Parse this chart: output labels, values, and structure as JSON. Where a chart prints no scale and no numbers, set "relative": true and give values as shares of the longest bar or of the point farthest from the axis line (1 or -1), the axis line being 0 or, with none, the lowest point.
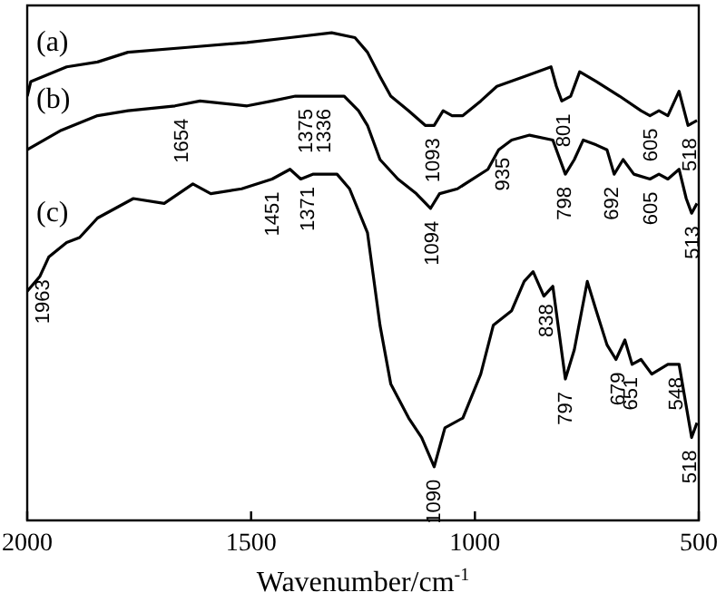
{
  "chart_data": {
    "type": "line",
    "relative": true,
    "xlabel": "Wavenumber/cm$^{-1}$",
    "xlim": [
      2000,
      500
    ],
    "xticks": [
      2000,
      1500,
      1000,
      500
    ],
    "grid": false,
    "legend": false,
    "marker": "none",
    "line_style": "solid",
    "tick_labels": "x",
    "series": [
      {
        "name": "(a)",
        "color": "#000000",
        "x": [
          2000,
          1992,
          1912,
          1843,
          1775,
          1642,
          1509,
          1413,
          1320,
          1268,
          1240,
          1212,
          1188,
          1148,
          1111,
          1091,
          1071,
          1051,
          1027,
          987,
          951,
          890,
          830,
          818,
          806,
          786,
          766,
          729,
          677,
          629,
          609,
          589,
          569,
          544,
          524,
          504
        ],
        "values": [
          0.87,
          0.9,
          0.93,
          0.94,
          0.96,
          0.97,
          0.98,
          0.99,
          1.0,
          0.99,
          0.96,
          0.91,
          0.87,
          0.84,
          0.81,
          0.81,
          0.84,
          0.83,
          0.83,
          0.86,
          0.89,
          0.91,
          0.93,
          0.89,
          0.86,
          0.87,
          0.92,
          0.9,
          0.87,
          0.84,
          0.83,
          0.84,
          0.83,
          0.88,
          0.81,
          0.82
        ]
      },
      {
        "name": "(b)",
        "color": "#000000",
        "x": [
          2000,
          1924,
          1843,
          1775,
          1670,
          1614,
          1509,
          1453,
          1401,
          1361,
          1292,
          1260,
          1240,
          1212,
          1172,
          1131,
          1099,
          1079,
          1039,
          971,
          947,
          918,
          878,
          826,
          798,
          778,
          758,
          729,
          705,
          689,
          669,
          645,
          609,
          589,
          569,
          544,
          528,
          516,
          504
        ],
        "values": [
          0.76,
          0.8,
          0.83,
          0.84,
          0.85,
          0.86,
          0.85,
          0.86,
          0.87,
          0.87,
          0.87,
          0.84,
          0.81,
          0.74,
          0.7,
          0.67,
          0.64,
          0.67,
          0.68,
          0.72,
          0.76,
          0.78,
          0.79,
          0.78,
          0.71,
          0.74,
          0.78,
          0.77,
          0.76,
          0.71,
          0.74,
          0.71,
          0.7,
          0.71,
          0.7,
          0.72,
          0.66,
          0.63,
          0.65
        ]
      },
      {
        "name": "(c)",
        "color": "#000000",
        "x": [
          2000,
          1972,
          1952,
          1912,
          1883,
          1843,
          1763,
          1694,
          1630,
          1590,
          1521,
          1453,
          1413,
          1389,
          1361,
          1308,
          1280,
          1240,
          1212,
          1188,
          1148,
          1119,
          1091,
          1067,
          1027,
          987,
          959,
          918,
          890,
          870,
          846,
          826,
          798,
          778,
          749,
          729,
          705,
          685,
          665,
          649,
          629,
          605,
          569,
          544,
          516,
          504
        ],
        "values": [
          0.47,
          0.5,
          0.54,
          0.57,
          0.58,
          0.62,
          0.66,
          0.65,
          0.69,
          0.67,
          0.68,
          0.7,
          0.72,
          0.7,
          0.71,
          0.71,
          0.68,
          0.59,
          0.4,
          0.28,
          0.21,
          0.17,
          0.11,
          0.19,
          0.21,
          0.3,
          0.4,
          0.43,
          0.49,
          0.51,
          0.46,
          0.48,
          0.29,
          0.35,
          0.49,
          0.43,
          0.36,
          0.33,
          0.37,
          0.32,
          0.33,
          0.3,
          0.32,
          0.32,
          0.17,
          0.2
        ]
      }
    ],
    "annotations": [
      {
        "text": "1093",
        "x": 1093,
        "y": 0.81
      },
      {
        "text": "801",
        "x": 801,
        "y": 0.86
      },
      {
        "text": "605",
        "x": 605,
        "y": 0.83
      },
      {
        "text": "518",
        "x": 518,
        "y": 0.81
      },
      {
        "text": "1654",
        "x": 1654,
        "y": 0.85
      },
      {
        "text": "1375",
        "x": 1375,
        "y": 0.87
      },
      {
        "text": "1336",
        "x": 1336,
        "y": 0.87
      },
      {
        "text": "1094",
        "x": 1094,
        "y": 0.64
      },
      {
        "text": "935",
        "x": 935,
        "y": 0.77
      },
      {
        "text": "798",
        "x": 798,
        "y": 0.71
      },
      {
        "text": "692",
        "x": 692,
        "y": 0.71
      },
      {
        "text": "605",
        "x": 605,
        "y": 0.7
      },
      {
        "text": "513",
        "x": 513,
        "y": 0.63
      },
      {
        "text": "1963",
        "x": 1963,
        "y": 0.52
      },
      {
        "text": "1451",
        "x": 1451,
        "y": 0.7
      },
      {
        "text": "1371",
        "x": 1371,
        "y": 0.71
      },
      {
        "text": "1090",
        "x": 1090,
        "y": 0.11
      },
      {
        "text": "838",
        "x": 838,
        "y": 0.47
      },
      {
        "text": "797",
        "x": 797,
        "y": 0.29
      },
      {
        "text": "679",
        "x": 679,
        "y": 0.33
      },
      {
        "text": "651",
        "x": 651,
        "y": 0.32
      },
      {
        "text": "548",
        "x": 548,
        "y": 0.32
      },
      {
        "text": "518",
        "x": 518,
        "y": 0.17
      }
    ]
  }
}
